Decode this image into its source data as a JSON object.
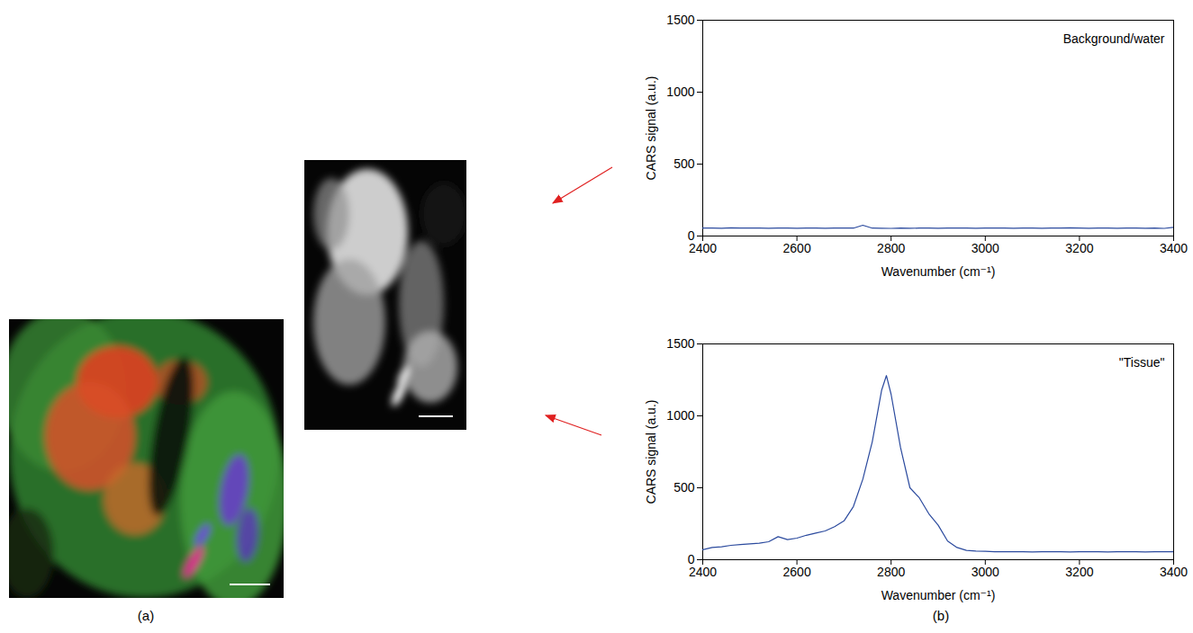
{
  "chart_data": [
    {
      "type": "line",
      "title": "Background/water",
      "x_label": "Wavenumber (cm⁻¹)",
      "y_label": "CARS signal (a.u.)",
      "x": [
        2400,
        2420,
        2440,
        2460,
        2480,
        2500,
        2520,
        2540,
        2560,
        2580,
        2600,
        2620,
        2640,
        2660,
        2680,
        2700,
        2720,
        2740,
        2760,
        2780,
        2800,
        2820,
        2840,
        2860,
        2880,
        2900,
        2920,
        2940,
        2960,
        2980,
        3000,
        3020,
        3040,
        3060,
        3080,
        3100,
        3120,
        3140,
        3160,
        3180,
        3200,
        3220,
        3240,
        3260,
        3280,
        3300,
        3320,
        3340,
        3360,
        3380,
        3400
      ],
      "values": [
        55,
        56,
        54,
        57,
        55,
        56,
        55,
        54,
        56,
        55,
        54,
        55,
        56,
        54,
        55,
        56,
        55,
        75,
        55,
        54,
        53,
        55,
        54,
        55,
        56,
        54,
        55,
        56,
        55,
        54,
        55,
        56,
        55,
        54,
        56,
        55,
        54,
        55,
        56,
        57,
        55,
        54,
        56,
        55,
        54,
        55,
        56,
        54,
        55,
        53,
        60
      ],
      "color": "#2b4a9e",
      "xlim": [
        2400,
        3400
      ],
      "xticks": [
        2400,
        2600,
        2800,
        3000,
        3200,
        3400
      ],
      "ylim": [
        0,
        1500
      ],
      "yticks": [
        0,
        500,
        1000,
        1500
      ],
      "grid": false
    },
    {
      "type": "line",
      "title": "\"Tissue\"",
      "x_label": "Wavenumber (cm⁻¹)",
      "y_label": "CARS signal (a.u.)",
      "x": [
        2400,
        2420,
        2440,
        2460,
        2480,
        2500,
        2520,
        2540,
        2560,
        2580,
        2600,
        2620,
        2640,
        2660,
        2680,
        2700,
        2720,
        2740,
        2760,
        2780,
        2790,
        2800,
        2820,
        2840,
        2860,
        2880,
        2900,
        2920,
        2940,
        2960,
        2980,
        3000,
        3020,
        3040,
        3060,
        3080,
        3100,
        3120,
        3140,
        3160,
        3180,
        3200,
        3220,
        3240,
        3260,
        3280,
        3300,
        3320,
        3340,
        3360,
        3380,
        3400
      ],
      "values": [
        70,
        85,
        90,
        100,
        105,
        110,
        115,
        125,
        160,
        140,
        150,
        170,
        185,
        200,
        230,
        270,
        370,
        560,
        820,
        1180,
        1280,
        1150,
        780,
        500,
        430,
        320,
        240,
        130,
        85,
        65,
        60,
        58,
        56,
        55,
        56,
        55,
        54,
        55,
        56,
        55,
        54,
        55,
        56,
        55,
        54,
        55,
        56,
        55,
        54,
        55,
        56,
        55
      ],
      "color": "#2b4a9e",
      "xlim": [
        2400,
        3400
      ],
      "xticks": [
        2400,
        2600,
        2800,
        3000,
        3200,
        3400
      ],
      "ylim": [
        0,
        1500
      ],
      "yticks": [
        0,
        500,
        1000,
        1500
      ],
      "grid": false
    }
  ],
  "panel_labels": [
    "(a)",
    "(b)"
  ]
}
